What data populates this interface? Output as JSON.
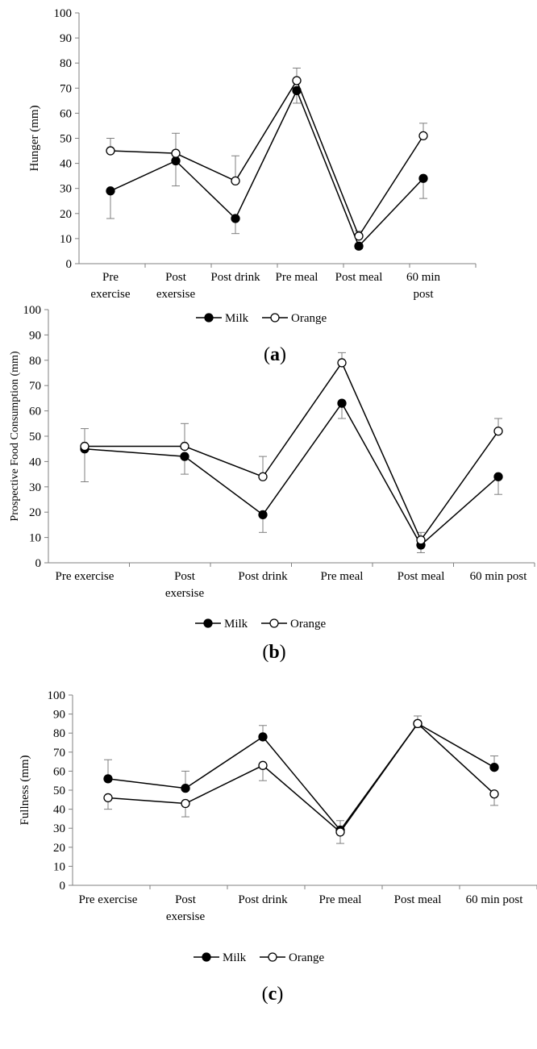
{
  "chart_data": [
    {
      "type": "line",
      "panel_label": "(a)",
      "ylabel": "Hunger (mm)",
      "xlabel": "",
      "ylim": [
        0,
        100
      ],
      "yticks": [
        "0",
        "10",
        "20",
        "30",
        "40",
        "50",
        "60",
        "70",
        "80",
        "90",
        "100"
      ],
      "categories": [
        [
          "Pre",
          "exercise"
        ],
        [
          "Post",
          "exersise"
        ],
        [
          "Post drink"
        ],
        [
          "Pre meal"
        ],
        [
          "Post meal"
        ],
        [
          "60 min",
          "post"
        ]
      ],
      "series": [
        {
          "name": "Milk",
          "marker": "filled",
          "values": [
            29,
            41,
            18,
            69,
            7,
            34
          ],
          "err_low": [
            11,
            10,
            6,
            5,
            1,
            8
          ],
          "err_high": [
            0,
            0,
            0,
            0,
            0,
            0
          ]
        },
        {
          "name": "Orange",
          "marker": "open",
          "values": [
            45,
            44,
            33,
            73,
            11,
            51
          ],
          "err_low": [
            0,
            0,
            0,
            0,
            0,
            0
          ],
          "err_high": [
            5,
            8,
            10,
            5,
            2,
            5
          ]
        }
      ],
      "legend": "bottom-center",
      "grid": false
    },
    {
      "type": "line",
      "panel_label": "(b)",
      "ylabel": "Prospective Food Consumption (mm)",
      "xlabel": "",
      "ylim": [
        0,
        100
      ],
      "yticks": [
        "0",
        "10",
        "20",
        "30",
        "40",
        "50",
        "60",
        "70",
        "80",
        "90",
        "100"
      ],
      "categories": [
        [
          "Pre exercise"
        ],
        [
          "Post",
          "exersise"
        ],
        [
          "Post drink"
        ],
        [
          "Pre meal"
        ],
        [
          "Post meal"
        ],
        [
          "60 min post"
        ]
      ],
      "series": [
        {
          "name": "Milk",
          "marker": "filled",
          "values": [
            45,
            42,
            19,
            63,
            7,
            34
          ],
          "err_low": [
            13,
            7,
            7,
            6,
            3,
            7
          ],
          "err_high": [
            0,
            0,
            0,
            0,
            0,
            0
          ]
        },
        {
          "name": "Orange",
          "marker": "open",
          "values": [
            46,
            46,
            34,
            79,
            9,
            52
          ],
          "err_low": [
            0,
            0,
            0,
            0,
            0,
            0
          ],
          "err_high": [
            7,
            9,
            8,
            4,
            3,
            5
          ]
        }
      ],
      "legend": "bottom-center",
      "grid": false
    },
    {
      "type": "line",
      "panel_label": "(c)",
      "ylabel": "Fullness (mm)",
      "xlabel": "",
      "ylim": [
        0,
        100
      ],
      "yticks": [
        "0",
        "10",
        "20",
        "30",
        "40",
        "50",
        "60",
        "70",
        "80",
        "90",
        "100"
      ],
      "categories": [
        [
          "Pre exercise"
        ],
        [
          "Post",
          "exersise"
        ],
        [
          "Post drink"
        ],
        [
          "Pre meal"
        ],
        [
          "Post meal"
        ],
        [
          "60 min post"
        ]
      ],
      "series": [
        {
          "name": "Milk",
          "marker": "filled",
          "values": [
            56,
            51,
            78,
            29,
            85,
            62
          ],
          "err_low": [
            0,
            0,
            0,
            0,
            0,
            0
          ],
          "err_high": [
            10,
            9,
            6,
            5,
            4,
            6
          ]
        },
        {
          "name": "Orange",
          "marker": "open",
          "values": [
            46,
            43,
            63,
            28,
            85,
            48
          ],
          "err_low": [
            6,
            7,
            8,
            6,
            2,
            6
          ],
          "err_high": [
            0,
            0,
            0,
            0,
            0,
            0
          ]
        }
      ],
      "legend": "bottom-center",
      "grid": false
    }
  ]
}
